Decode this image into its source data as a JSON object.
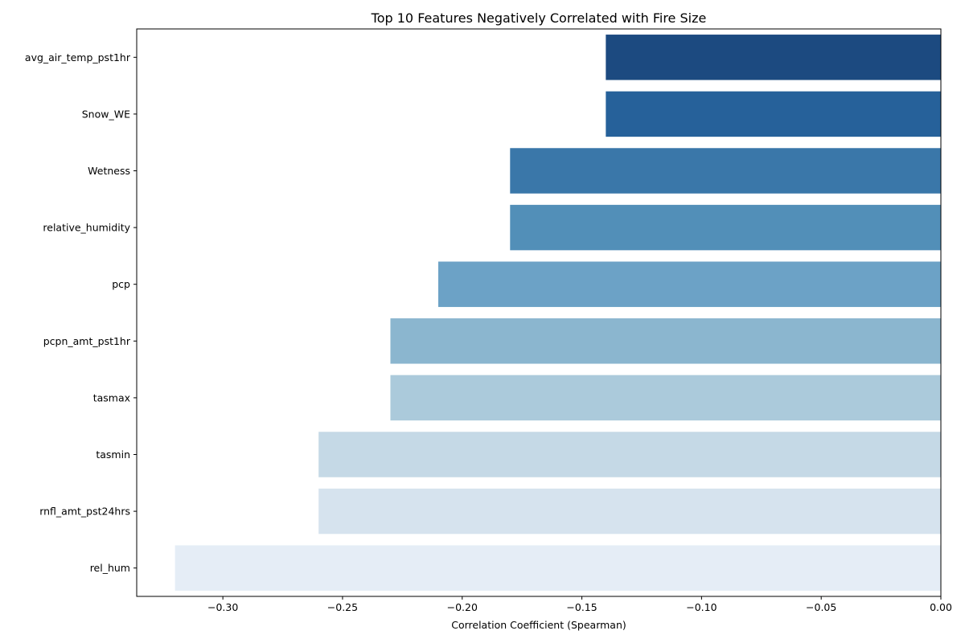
{
  "chart_data": {
    "type": "bar",
    "orientation": "horizontal",
    "title": "Top 10 Features Negatively Correlated with Fire Size",
    "xlabel": "Correlation Coefficient (Spearman)",
    "ylabel": "",
    "categories": [
      "avg_air_temp_pst1hr",
      "Snow_WE",
      "Wetness",
      "relative_humidity",
      "pcp",
      "pcpn_amt_pst1hr",
      "tasmax",
      "tasmin",
      "rnfl_amt_pst24hrs",
      "rel_hum"
    ],
    "values": [
      -0.14,
      -0.14,
      -0.18,
      -0.18,
      -0.21,
      -0.23,
      -0.23,
      -0.26,
      -0.26,
      -0.32
    ],
    "colors": [
      "#1c4a80",
      "#26619a",
      "#3a77a9",
      "#528fb8",
      "#6ca2c6",
      "#8bb6cf",
      "#abcadb",
      "#c5d9e6",
      "#d6e3ee",
      "#e5edf6"
    ],
    "xlim": [
      -0.336,
      0.0
    ],
    "xticks": [
      -0.3,
      -0.25,
      -0.2,
      -0.15,
      -0.1,
      -0.05,
      0.0
    ],
    "xtick_labels": [
      "−0.30",
      "−0.25",
      "−0.20",
      "−0.15",
      "−0.10",
      "−0.05",
      "0.00"
    ],
    "grid": false,
    "legend": "none"
  }
}
